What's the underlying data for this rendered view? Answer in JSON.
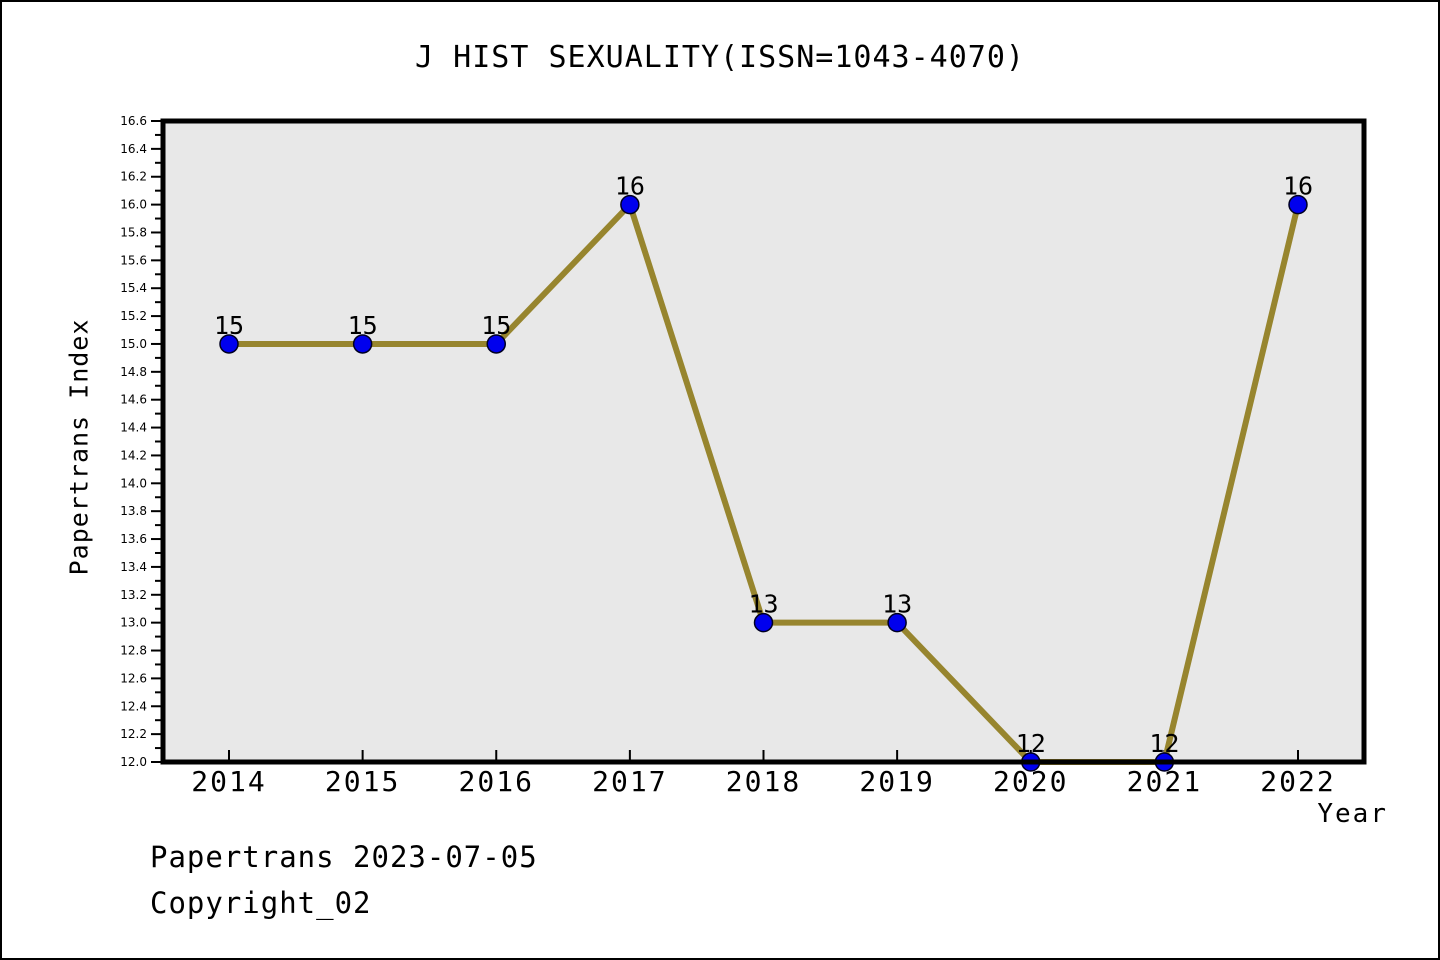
{
  "header": {
    "title": "J HIST SEXUALITY(ISSN=1043-4070)"
  },
  "footer": {
    "line1": "Papertrans 2023-07-05",
    "line2": "Copyright_02"
  },
  "chart_data": {
    "type": "line",
    "title": "J HIST SEXUALITY(ISSN=1043-4070)",
    "xlabel": "Year",
    "ylabel": "Papertrans Index",
    "categories": [
      "2014",
      "2015",
      "2016",
      "2017",
      "2018",
      "2019",
      "2020",
      "2021",
      "2022"
    ],
    "values": [
      15,
      15,
      15,
      16,
      13,
      13,
      12,
      12,
      16
    ],
    "point_labels": [
      "15",
      "15",
      "15",
      "16",
      "13",
      "13",
      "12",
      "12",
      "16"
    ],
    "ylim": [
      12.0,
      16.6
    ],
    "ytick_major_step": 0.2,
    "ytick_minor_step": 0.1,
    "grid": false,
    "legend": "none",
    "style": {
      "line_color": "#97852E",
      "marker_fill": "#0000EE",
      "marker_edge": "#000022",
      "plot_bg": "#E8E8E8",
      "spine_color": "#000000",
      "page_bg": "#FFFFFF",
      "text_color": "#000000"
    }
  }
}
